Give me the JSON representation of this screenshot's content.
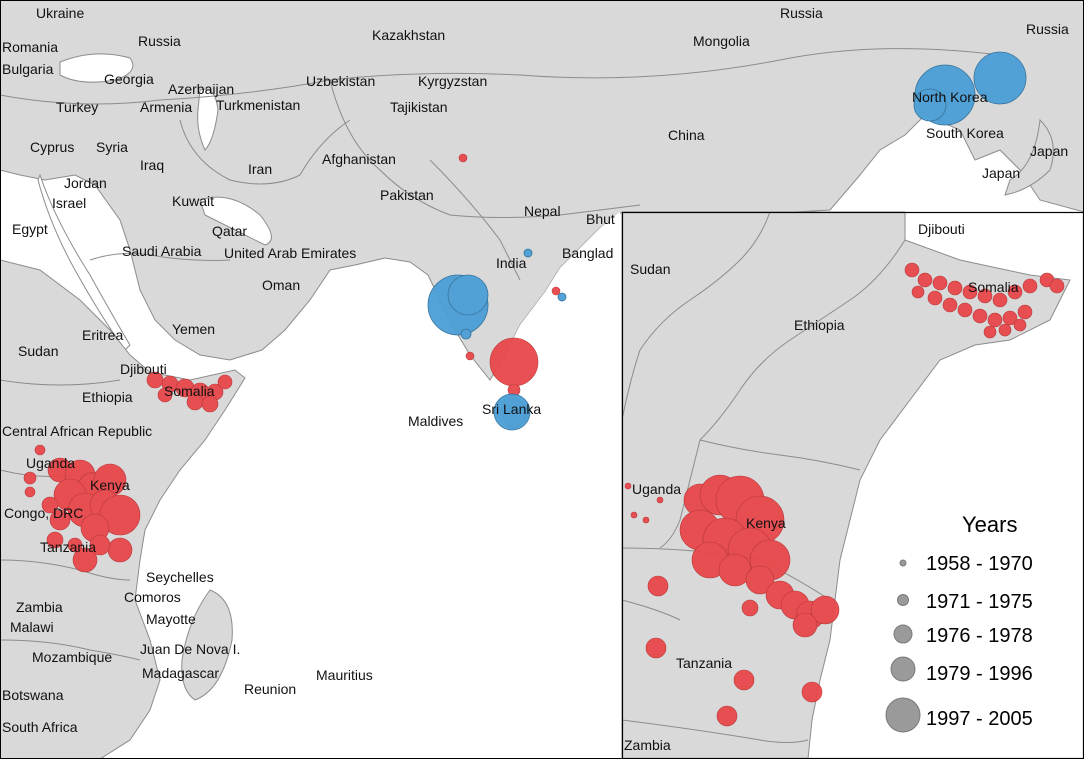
{
  "colors": {
    "land": "#d9d9d9",
    "sea": "#ffffff",
    "border": "#8c8c8c",
    "red": "#e8474a",
    "blue": "#4a9fd6"
  },
  "main_map": {
    "labels": [
      "Ukraine",
      "Russia",
      "Kazakhstan",
      "Romania",
      "Bulgaria",
      "Georgia",
      "Azerbaijan",
      "Uzbekistan",
      "Kyrgyzstan",
      "Mongolia",
      "Russia",
      "Russia",
      "Turkey",
      "Armenia",
      "Turkmenistan",
      "Tajikistan",
      "North Korea",
      "China",
      "South Korea",
      "Cyprus",
      "Syria",
      "Iraq",
      "Iran",
      "Afghanistan",
      "Japan",
      "Japan",
      "Jordan",
      "Israel",
      "Kuwait",
      "Pakistan",
      "Egypt",
      "Qatar",
      "Nepal",
      "Bhut",
      "Saudi Arabia",
      "United Arab Emirates",
      "India",
      "Banglad",
      "Oman",
      "Eritrea",
      "Yemen",
      "Sudan",
      "Djibouti",
      "Somalia",
      "Ethiopia",
      "Maldives",
      "Sri Lanka",
      "Central African Republic",
      "Uganda",
      "Kenya",
      "Congo, DRC",
      "Tanzania",
      "Seychelles",
      "Comoros",
      "Mayotte",
      "Zambia",
      "Malawi",
      "Juan De Nova I.",
      "Mozambique",
      "Madagascar",
      "Mauritius",
      "Reunion",
      "Botswana",
      "South Africa"
    ]
  },
  "inset_map": {
    "labels": [
      "Djibouti",
      "Sudan",
      "Somalia",
      "Ethiopia",
      "Uganda",
      "Kenya",
      "Tanzania",
      "Zambia"
    ]
  },
  "legend": {
    "title": "Years",
    "entries": [
      "1958 - 1970",
      "1971 - 1975",
      "1976 - 1978",
      "1979 - 1996",
      "1997 - 2005"
    ]
  }
}
